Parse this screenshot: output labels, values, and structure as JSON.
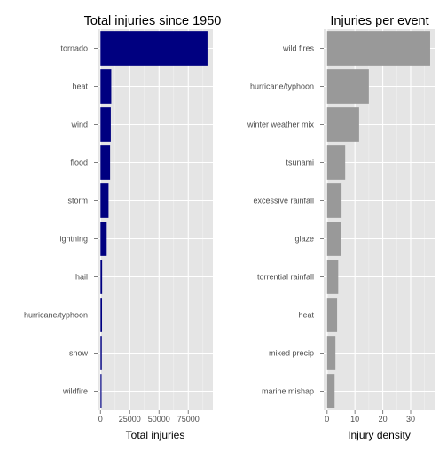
{
  "chart_data": [
    {
      "type": "bar",
      "orientation": "horizontal",
      "title": "Total injuries since 1950",
      "xlabel": "Total injuries",
      "ylabel": "",
      "categories": [
        "tornado",
        "heat",
        "wind",
        "flood",
        "storm",
        "lightning",
        "hail",
        "hurricane/typhoon",
        "snow",
        "wildfire"
      ],
      "values": [
        91400,
        9200,
        8800,
        8200,
        6900,
        5300,
        1400,
        1300,
        1100,
        900
      ],
      "xlim": [
        -2500,
        96000
      ],
      "xticks": [
        0,
        25000,
        50000,
        75000
      ],
      "xtick_labels": [
        "0",
        "25000",
        "50000",
        "75000"
      ],
      "grid": true,
      "bar_color": "#000080"
    },
    {
      "type": "bar",
      "orientation": "horizontal",
      "title": "Injuries per event",
      "xlabel": "Injury density",
      "ylabel": "",
      "categories": [
        "wild fires",
        "hurricane/typhoon",
        "winter weather mix",
        "tsunami",
        "excessive rainfall",
        "glaze",
        "torrential rainfall",
        "heat",
        "mixed precip",
        "marine mishap"
      ],
      "values": [
        37.0,
        15.0,
        11.5,
        6.5,
        5.2,
        5.0,
        4.0,
        3.6,
        3.0,
        2.7
      ],
      "xlim": [
        -1.2,
        38.6
      ],
      "xticks": [
        0,
        10,
        20,
        30
      ],
      "xtick_labels": [
        "0",
        "10",
        "20",
        "30"
      ],
      "grid": true,
      "bar_color": "#999999"
    }
  ]
}
